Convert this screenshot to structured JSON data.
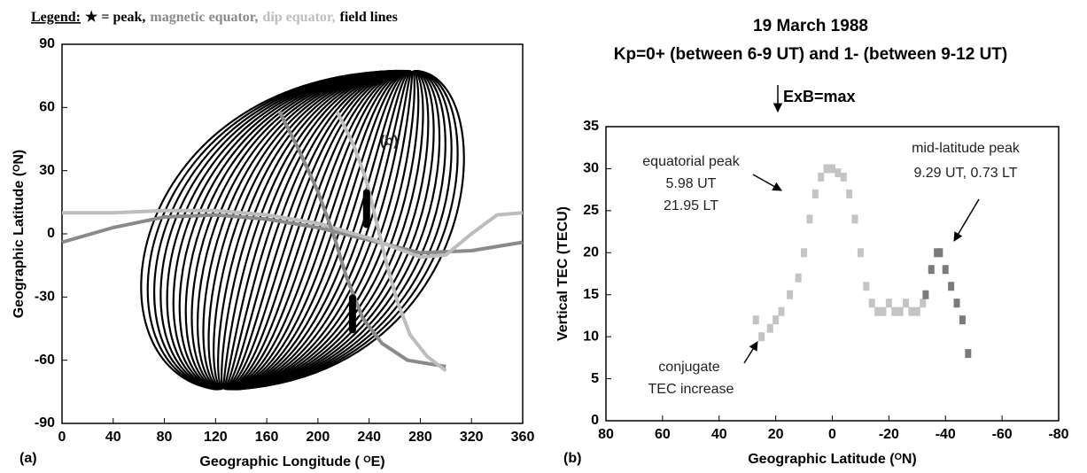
{
  "chart_data": [
    {
      "type": "line",
      "legend": {
        "title": "Legend:",
        "items": [
          {
            "label": "★ = peak,",
            "color": "#000000"
          },
          {
            "label": "magnetic equator,",
            "color": "#8a8a8a"
          },
          {
            "label": "dip equator,",
            "color": "#bdbdbd"
          },
          {
            "label": "field lines",
            "color": "#000000"
          }
        ]
      },
      "x_label": "Geographic Longitude ( ᴼE)",
      "y_label": "Geographic Latitude (ᴼN)",
      "panel_label": "(a)",
      "annotations": [
        "(b)"
      ],
      "xlim": [
        0,
        360
      ],
      "xticks": [
        0,
        40,
        80,
        120,
        160,
        200,
        240,
        280,
        320,
        360
      ],
      "ylim": [
        -90,
        90
      ],
      "yticks": [
        -90,
        -60,
        -30,
        0,
        30,
        60,
        90
      ],
      "series": [
        {
          "color": "#8a8a8a",
          "x": [
            0,
            40,
            80,
            120,
            160,
            200,
            240,
            280,
            320,
            360
          ],
          "values": [
            -4,
            3,
            8,
            9,
            7,
            3,
            -3,
            -9,
            -8,
            -4
          ]
        },
        {
          "color": "#bdbdbd",
          "x": [
            0,
            40,
            80,
            120,
            160,
            200,
            240,
            280,
            300,
            320,
            340,
            360
          ],
          "values": [
            10,
            10,
            11,
            11,
            9,
            5,
            -2,
            -11,
            -10,
            0,
            9,
            10
          ]
        },
        {
          "color": "#8a8a8a",
          "x": [
            170,
            185,
            200,
            212,
            222,
            235,
            250,
            270,
            300
          ],
          "values": [
            58,
            40,
            20,
            0,
            -20,
            -40,
            -52,
            -60,
            -63
          ]
        },
        {
          "color": "#bdbdbd",
          "x": [
            215,
            228,
            238,
            246,
            254,
            262,
            272,
            285,
            300
          ],
          "values": [
            58,
            42,
            25,
            5,
            -15,
            -32,
            -48,
            -58,
            -65
          ]
        }
      ],
      "peaks": {
        "color": "#000000",
        "x": [
          238,
          227
        ],
        "values": [
          12,
          -38
        ]
      }
    },
    {
      "type": "scatter",
      "title": "19 March 1988",
      "subtitle": "Kp=0+ (between 6-9 UT) and 1- (between 9-12 UT)",
      "marker_text": "ExB=max",
      "x_label": "Geographic Latitude (ᴼN)",
      "y_label": "Vertical TEC (TECU)",
      "panel_label": "(b)",
      "annotations": [
        "equatorial peak",
        "5.98 UT",
        "21.95 LT",
        "mid-latitude peak",
        "9.29 UT, 0.73 LT",
        "conjugate",
        "TEC increase"
      ],
      "xlim": [
        80,
        -80
      ],
      "xticks": [
        80,
        60,
        40,
        20,
        0,
        -20,
        -40,
        -60,
        -80
      ],
      "ylim": [
        0,
        35
      ],
      "yticks": [
        0,
        5,
        10,
        15,
        20,
        25,
        30,
        35
      ],
      "series": [
        {
          "color": "#c4c4c4",
          "x": [
            27,
            25,
            22,
            20,
            18,
            15,
            12,
            10,
            8,
            6,
            4,
            2,
            0,
            -2,
            -4,
            -6,
            -8,
            -10,
            -12,
            -14,
            -16,
            -18,
            -20,
            -22,
            -24,
            -26,
            -28,
            -30,
            -32
          ],
          "values": [
            12,
            10,
            11,
            12,
            13,
            15,
            17,
            20,
            24,
            27,
            29,
            30,
            30,
            29.5,
            29,
            27,
            24,
            20,
            16,
            14,
            13,
            13,
            14,
            13,
            13,
            14,
            13,
            13,
            14
          ]
        },
        {
          "color": "#7a7a7a",
          "x": [
            -33,
            -35,
            -37,
            -38,
            -40,
            -42,
            -44,
            -46,
            -48
          ],
          "values": [
            15,
            18,
            20,
            20,
            18,
            16,
            14,
            12,
            8
          ]
        }
      ]
    }
  ]
}
